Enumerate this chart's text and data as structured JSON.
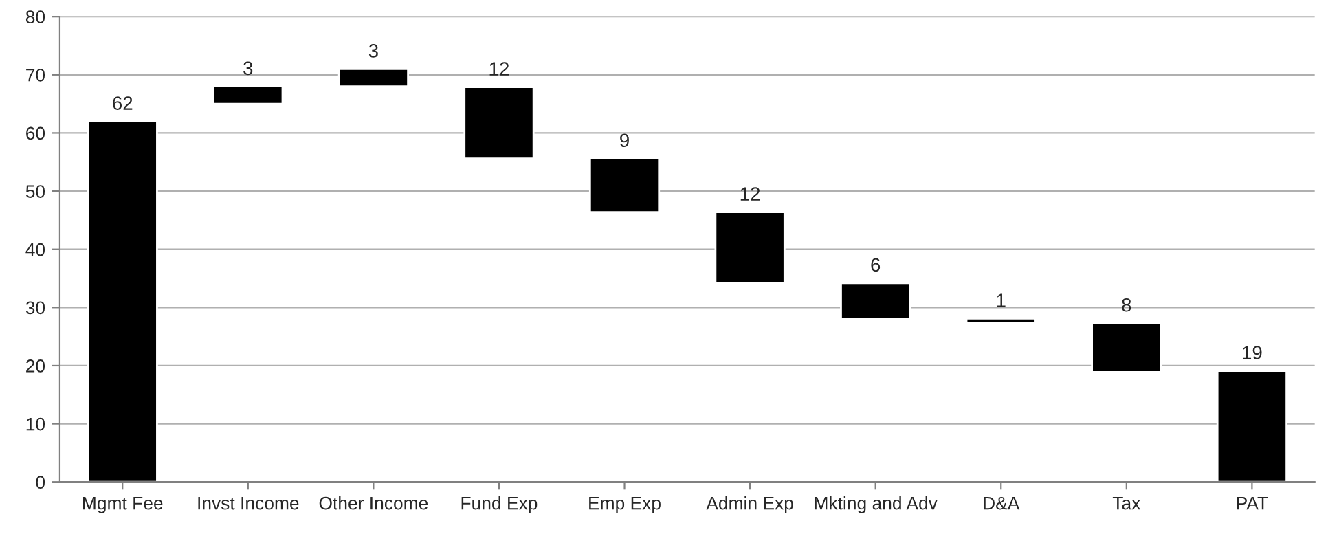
{
  "chart_data": {
    "type": "bar",
    "categories": [
      "Mgmt Fee",
      "Invst Income",
      "Other Income",
      "Fund Exp",
      "Emp Exp",
      "Admin Exp",
      "Mkting and Adv",
      "D&A",
      "Tax",
      "PAT"
    ],
    "values": [
      62,
      3,
      3,
      12.3,
      9.2,
      12.2,
      6.1,
      0.8,
      8.4,
      19.1
    ],
    "base": [
      0,
      65,
      68,
      55.6,
      46.4,
      34.2,
      28.1,
      27.3,
      18.9,
      0
    ],
    "value_labels": [
      "62",
      "3",
      "3",
      "12",
      "9",
      "12",
      "6",
      "1",
      "8",
      "19"
    ],
    "color": "#000000",
    "ylim": [
      0,
      80
    ],
    "yticks": [
      0,
      10,
      20,
      30,
      40,
      50,
      60,
      70,
      80
    ],
    "grid": "y"
  }
}
